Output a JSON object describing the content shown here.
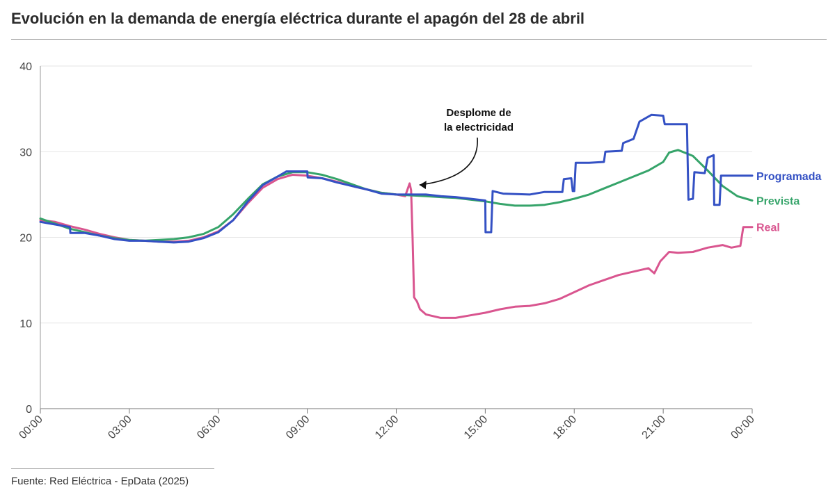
{
  "chart_data": {
    "type": "line",
    "title": "Evolución en la demanda de energía eléctrica durante el apagón del 28 de abril",
    "xlabel": "",
    "ylabel": "",
    "x_range": [
      0,
      24
    ],
    "ylim": [
      0,
      40
    ],
    "y_ticks": [
      0,
      10,
      20,
      30,
      40
    ],
    "x_ticks": [
      {
        "x": 0,
        "label": "00:00"
      },
      {
        "x": 3,
        "label": "03:00"
      },
      {
        "x": 6,
        "label": "06:00"
      },
      {
        "x": 9,
        "label": "09:00"
      },
      {
        "x": 12,
        "label": "12:00"
      },
      {
        "x": 15,
        "label": "15:00"
      },
      {
        "x": 18,
        "label": "18:00"
      },
      {
        "x": 21,
        "label": "21:00"
      },
      {
        "x": 24,
        "label": "00:00"
      }
    ],
    "grid": "horizontal",
    "legend": "direct labels at right end of lines",
    "annotation": {
      "line1": "Desplome de",
      "line2": "la electricidad",
      "x": 12.5,
      "y": 26.2
    },
    "series": [
      {
        "name": "Real",
        "color": "#d9558f",
        "points": [
          [
            0,
            22.0
          ],
          [
            0.5,
            21.8
          ],
          [
            1.0,
            21.3
          ],
          [
            1.5,
            20.9
          ],
          [
            2.0,
            20.4
          ],
          [
            2.5,
            20.0
          ],
          [
            3.0,
            19.7
          ],
          [
            3.5,
            19.6
          ],
          [
            4.0,
            19.5
          ],
          [
            4.5,
            19.5
          ],
          [
            5.0,
            19.6
          ],
          [
            5.5,
            20.0
          ],
          [
            6.0,
            20.7
          ],
          [
            6.5,
            22.0
          ],
          [
            7.0,
            24.0
          ],
          [
            7.5,
            25.8
          ],
          [
            8.0,
            26.8
          ],
          [
            8.5,
            27.3
          ],
          [
            9.0,
            27.2
          ],
          [
            9.5,
            26.9
          ],
          [
            10.0,
            26.5
          ],
          [
            10.5,
            26.0
          ],
          [
            11.0,
            25.6
          ],
          [
            11.5,
            25.2
          ],
          [
            12.0,
            25.0
          ],
          [
            12.3,
            24.8
          ],
          [
            12.45,
            26.3
          ],
          [
            12.5,
            25.5
          ],
          [
            12.55,
            20.0
          ],
          [
            12.6,
            13.0
          ],
          [
            12.7,
            12.5
          ],
          [
            12.8,
            11.6
          ],
          [
            13.0,
            11.0
          ],
          [
            13.5,
            10.6
          ],
          [
            14.0,
            10.6
          ],
          [
            14.5,
            10.9
          ],
          [
            15.0,
            11.2
          ],
          [
            15.5,
            11.6
          ],
          [
            16.0,
            11.9
          ],
          [
            16.5,
            12.0
          ],
          [
            17.0,
            12.3
          ],
          [
            17.5,
            12.8
          ],
          [
            18.0,
            13.6
          ],
          [
            18.5,
            14.4
          ],
          [
            19.0,
            15.0
          ],
          [
            19.5,
            15.6
          ],
          [
            20.0,
            16.0
          ],
          [
            20.5,
            16.4
          ],
          [
            20.7,
            15.8
          ],
          [
            20.9,
            17.2
          ],
          [
            21.2,
            18.3
          ],
          [
            21.5,
            18.2
          ],
          [
            22.0,
            18.3
          ],
          [
            22.5,
            18.8
          ],
          [
            23.0,
            19.1
          ],
          [
            23.3,
            18.8
          ],
          [
            23.6,
            19.0
          ],
          [
            23.7,
            21.2
          ],
          [
            24.0,
            21.2
          ]
        ]
      },
      {
        "name": "Prevista",
        "color": "#36a46a",
        "points": [
          [
            0,
            22.2
          ],
          [
            0.5,
            21.6
          ],
          [
            1.0,
            21.0
          ],
          [
            1.5,
            20.6
          ],
          [
            2.0,
            20.2
          ],
          [
            2.5,
            19.9
          ],
          [
            3.0,
            19.7
          ],
          [
            3.5,
            19.6
          ],
          [
            4.0,
            19.7
          ],
          [
            4.5,
            19.8
          ],
          [
            5.0,
            20.0
          ],
          [
            5.5,
            20.4
          ],
          [
            6.0,
            21.2
          ],
          [
            6.5,
            22.7
          ],
          [
            7.0,
            24.5
          ],
          [
            7.5,
            26.2
          ],
          [
            8.0,
            27.1
          ],
          [
            8.5,
            27.6
          ],
          [
            9.0,
            27.6
          ],
          [
            9.5,
            27.3
          ],
          [
            10.0,
            26.8
          ],
          [
            10.5,
            26.2
          ],
          [
            11.0,
            25.6
          ],
          [
            11.5,
            25.2
          ],
          [
            12.0,
            25.0
          ],
          [
            12.5,
            24.9
          ],
          [
            13.0,
            24.8
          ],
          [
            13.5,
            24.7
          ],
          [
            14.0,
            24.6
          ],
          [
            14.5,
            24.4
          ],
          [
            15.0,
            24.2
          ],
          [
            15.5,
            23.9
          ],
          [
            16.0,
            23.7
          ],
          [
            16.5,
            23.7
          ],
          [
            17.0,
            23.8
          ],
          [
            17.5,
            24.1
          ],
          [
            18.0,
            24.5
          ],
          [
            18.5,
            25.0
          ],
          [
            19.0,
            25.7
          ],
          [
            19.5,
            26.4
          ],
          [
            20.0,
            27.1
          ],
          [
            20.5,
            27.8
          ],
          [
            21.0,
            28.8
          ],
          [
            21.2,
            29.9
          ],
          [
            21.5,
            30.2
          ],
          [
            22.0,
            29.5
          ],
          [
            22.5,
            27.8
          ],
          [
            23.0,
            26.0
          ],
          [
            23.5,
            24.8
          ],
          [
            24.0,
            24.3
          ]
        ]
      },
      {
        "name": "Programada",
        "color": "#3451c4",
        "points": [
          [
            0,
            21.8
          ],
          [
            0.5,
            21.5
          ],
          [
            1.0,
            21.2
          ],
          [
            1.01,
            20.5
          ],
          [
            1.5,
            20.5
          ],
          [
            2.0,
            20.2
          ],
          [
            2.5,
            19.8
          ],
          [
            3.0,
            19.6
          ],
          [
            3.5,
            19.6
          ],
          [
            4.0,
            19.5
          ],
          [
            4.5,
            19.4
          ],
          [
            5.0,
            19.5
          ],
          [
            5.5,
            19.9
          ],
          [
            6.0,
            20.6
          ],
          [
            6.5,
            22.0
          ],
          [
            7.0,
            24.2
          ],
          [
            7.5,
            26.1
          ],
          [
            8.0,
            27.1
          ],
          [
            8.3,
            27.7
          ],
          [
            9.0,
            27.7
          ],
          [
            9.01,
            27.0
          ],
          [
            9.5,
            26.9
          ],
          [
            10.0,
            26.4
          ],
          [
            10.5,
            26.0
          ],
          [
            11.0,
            25.6
          ],
          [
            11.5,
            25.1
          ],
          [
            12.0,
            25.0
          ],
          [
            12.5,
            25.0
          ],
          [
            13.0,
            25.0
          ],
          [
            13.5,
            24.8
          ],
          [
            14.0,
            24.7
          ],
          [
            14.5,
            24.5
          ],
          [
            15.0,
            24.3
          ],
          [
            15.01,
            20.6
          ],
          [
            15.2,
            20.6
          ],
          [
            15.25,
            25.4
          ],
          [
            15.6,
            25.1
          ],
          [
            16.5,
            25.0
          ],
          [
            17.0,
            25.3
          ],
          [
            17.6,
            25.3
          ],
          [
            17.65,
            26.8
          ],
          [
            17.9,
            26.9
          ],
          [
            17.95,
            25.4
          ],
          [
            18.0,
            25.4
          ],
          [
            18.05,
            28.7
          ],
          [
            18.5,
            28.7
          ],
          [
            19.0,
            28.8
          ],
          [
            19.05,
            30.0
          ],
          [
            19.6,
            30.1
          ],
          [
            19.65,
            31.0
          ],
          [
            20.0,
            31.5
          ],
          [
            20.2,
            33.5
          ],
          [
            20.6,
            34.3
          ],
          [
            21.0,
            34.2
          ],
          [
            21.05,
            33.2
          ],
          [
            21.8,
            33.2
          ],
          [
            21.85,
            24.4
          ],
          [
            22.0,
            24.5
          ],
          [
            22.05,
            27.6
          ],
          [
            22.4,
            27.5
          ],
          [
            22.5,
            29.3
          ],
          [
            22.7,
            29.6
          ],
          [
            22.72,
            23.8
          ],
          [
            22.9,
            23.8
          ],
          [
            22.95,
            27.2
          ],
          [
            24.0,
            27.2
          ]
        ]
      }
    ]
  },
  "footer": {
    "source": "Fuente: Red Eléctrica - EpData (2025)"
  }
}
